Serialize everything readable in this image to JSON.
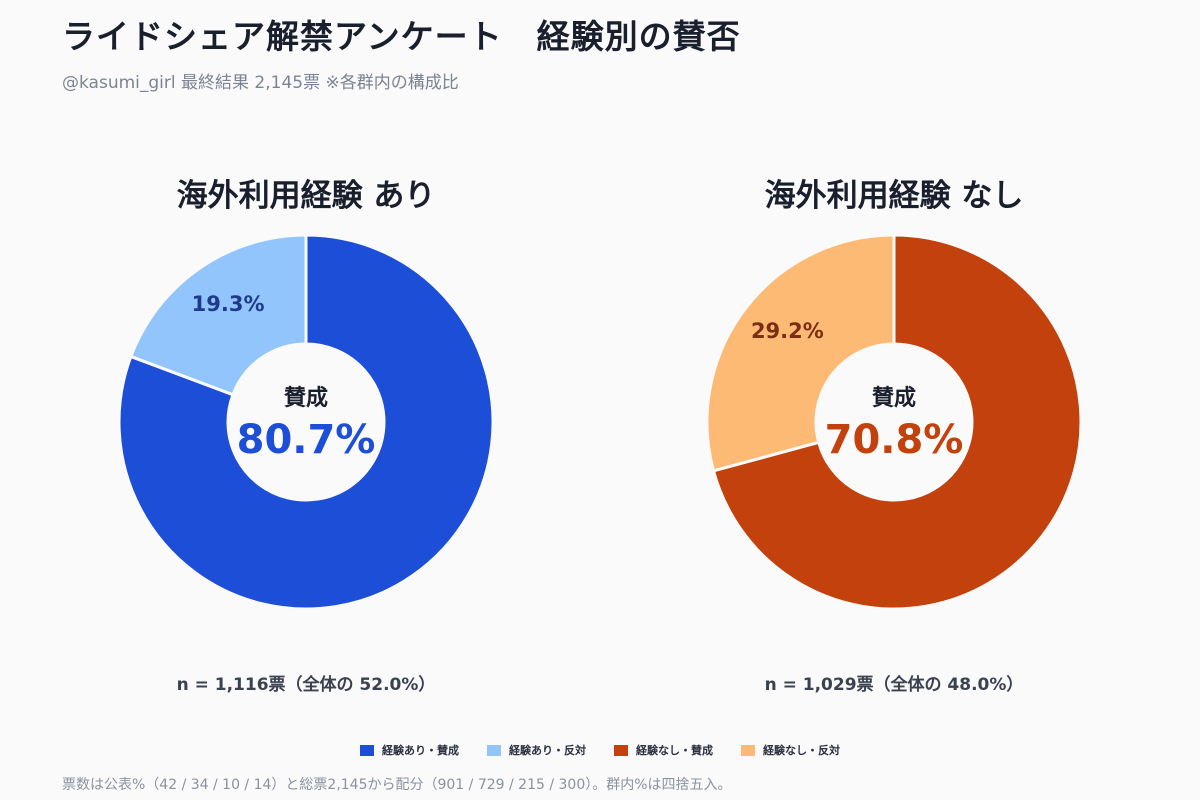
{
  "header": {
    "title": "ライドシェア解禁アンケート　経験別の賛否",
    "subtitle": "@kasumi_girl  最終結果  2,145票  ※各群内の構成比"
  },
  "chart_data": [
    {
      "type": "pie",
      "title": "海外利用経験 あり",
      "slices": [
        {
          "label": "経験あり・賛成",
          "value": 80.7,
          "color": "#1d4ed8"
        },
        {
          "label": "経験あり・反対",
          "value": 19.3,
          "color": "#93c5fd"
        }
      ],
      "center_label": "賛成",
      "center_value": "80.7%",
      "center_color": "#1d4ed8",
      "minor_label": "19.3%",
      "minor_label_color": "#1e3a8a",
      "n_text": "n = 1,116票（全体の 52.0%）"
    },
    {
      "type": "pie",
      "title": "海外利用経験 なし",
      "slices": [
        {
          "label": "経験なし・賛成",
          "value": 70.8,
          "color": "#c2410c"
        },
        {
          "label": "経験なし・反対",
          "value": 29.2,
          "color": "#fdba74"
        }
      ],
      "center_label": "賛成",
      "center_value": "70.8%",
      "center_color": "#c2410c",
      "minor_label": "29.2%",
      "minor_label_color": "#7c2d12",
      "n_text": "n = 1,029票（全体の 48.0%）"
    }
  ],
  "legend": [
    {
      "label": "経験あり・賛成",
      "color": "#1d4ed8"
    },
    {
      "label": "経験あり・反対",
      "color": "#93c5fd"
    },
    {
      "label": "経験なし・賛成",
      "color": "#c2410c"
    },
    {
      "label": "経験なし・反対",
      "color": "#fdba74"
    }
  ],
  "footnote": "票数は公表%（42 / 34 / 10 / 14）と総票2,145から配分（901 / 729 / 215 / 300）。群内%は四捨五入。"
}
